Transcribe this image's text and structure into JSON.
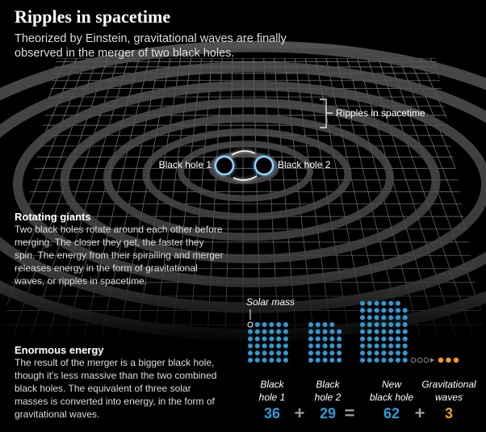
{
  "header": {
    "title": "Ripples in spacetime",
    "subtitle": "Theorized by Einstein, gravitational waves are finally observed in the merger of two black holes."
  },
  "labels": {
    "ripples": "Ripples in spacetime",
    "black_hole_1": "Black hole 1",
    "black_hole_2": "Black hole 2",
    "solar_mass": "Solar mass"
  },
  "sections": [
    {
      "heading": "Rotating giants",
      "body": "Two black holes rotate around each other before merging. The closer they get, the faster they spin. The energy from their spiralling and merger releases energy in the form of gravitational waves, or ripples in spacetime."
    },
    {
      "heading": "Enormous energy",
      "body": "The result of the merger is a bigger black hole, though it's less massive than the two combined black holes. The equivalent of three solar masses is converted into energy, in the form of gravitational waves."
    }
  ],
  "equation": {
    "items": [
      {
        "label": [
          "Black",
          "hole 1"
        ],
        "value": 36,
        "color": "#2e9bd6"
      },
      {
        "label": [
          "Black",
          "hole 2"
        ],
        "value": 29,
        "color": "#2e9bd6"
      },
      {
        "label": [
          "New",
          "black hole"
        ],
        "value": 62,
        "color": "#2e9bd6"
      },
      {
        "label": [
          "Gravitational",
          "waves"
        ],
        "value": 3,
        "color": "#f39c1f"
      }
    ],
    "operators": [
      "+",
      "=",
      "+"
    ]
  }
}
